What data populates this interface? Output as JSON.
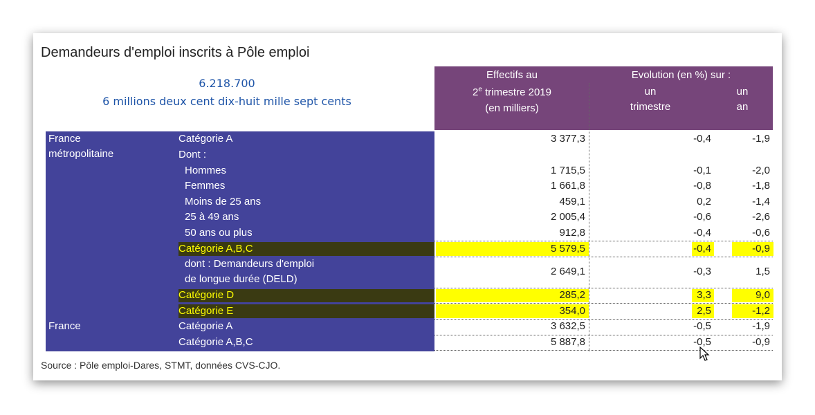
{
  "title": "Demandeurs d'emploi inscrits à Pôle emploi",
  "big_number": "6.218.700",
  "big_number_words": "6 millions  deux cent dix-huit mille sept cents",
  "header": {
    "effectifs_line1": "Effectifs au",
    "effectifs_num": "2",
    "effectifs_sup": "e",
    "effectifs_rest": "trimestre 2019",
    "effectifs_line3": "(en milliers)",
    "evolution": "Evolution (en %) sur :",
    "trimestre_line1": "un",
    "trimestre_line2": "trimestre",
    "an_line1": "un",
    "an_line2": "an"
  },
  "table": {
    "groups": [
      {
        "region": [
          "France",
          "métropolitaine"
        ],
        "rows": [
          {
            "label": "Catégorie A",
            "value": "3 377,3",
            "trimestre": "-0,4",
            "an": "-1,9"
          },
          {
            "label": "Dont :"
          },
          {
            "label": "Hommes",
            "indent": true,
            "value": "1 715,5",
            "trimestre": "-0,1",
            "an": "-2,0"
          },
          {
            "label": "Femmes",
            "indent": true,
            "value": "1 661,8",
            "trimestre": "-0,8",
            "an": "-1,8"
          },
          {
            "label": "Moins de 25 ans",
            "indent": true,
            "value": "459,1",
            "trimestre": "0,2",
            "an": "-1,4"
          },
          {
            "label": "25 à 49 ans",
            "indent": true,
            "value": "2 005,4",
            "trimestre": "-0,6",
            "an": "-2,6"
          },
          {
            "label": "50 ans ou plus",
            "indent": true,
            "value": "912,8",
            "trimestre": "-0,4",
            "an": "-0,6"
          },
          {
            "label": "Catégorie A,B,C",
            "highlighted": true,
            "value": "5 579,5",
            "trimestre": "-0,4",
            "an": "-0,9"
          },
          {
            "label": [
              "dont : Demandeurs d'emploi",
              "de longue durée (DELD)"
            ],
            "indent": true,
            "value": "2 649,1",
            "trimestre": "-0,3",
            "an": "1,5"
          },
          {
            "label": "Catégorie D",
            "highlighted": true,
            "value": "285,2",
            "trimestre": "3,3",
            "an": "9,0"
          },
          {
            "label": "Catégorie E",
            "highlighted": true,
            "value": "354,0",
            "trimestre": "2,5",
            "an": "-1,2"
          }
        ]
      },
      {
        "region": [
          "France"
        ],
        "rows": [
          {
            "label": "Catégorie A",
            "value": "3 632,5",
            "trimestre": "-0,5",
            "an": "-1,9"
          },
          {
            "label": "Catégorie A,B,C",
            "value": "5 887,8",
            "trimestre": "-0,5",
            "an": "-0,9"
          }
        ]
      }
    ]
  },
  "source": "Source : Pôle emploi-Dares, STMT, données CVS-CJO."
}
